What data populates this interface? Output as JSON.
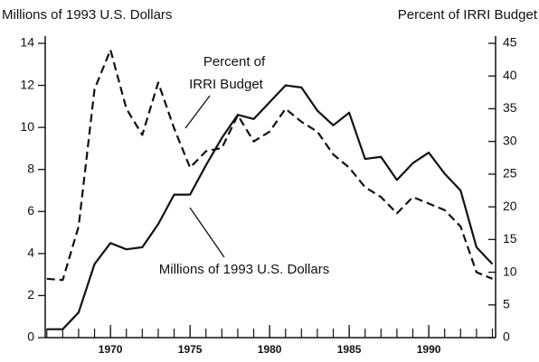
{
  "chart_data": {
    "type": "line",
    "y_label": "Millions of 1993 U.S. Dollars",
    "y2_label": "Percent of IRRI Budget",
    "annotations": [
      "Percent of",
      "IRRI Budget",
      "Millions of 1993 U.S. Dollars"
    ],
    "x": [
      1966,
      1967,
      1968,
      1969,
      1970,
      1971,
      1972,
      1973,
      1974,
      1975,
      1976,
      1977,
      1978,
      1979,
      1980,
      1981,
      1982,
      1983,
      1984,
      1985,
      1986,
      1987,
      1988,
      1989,
      1990,
      1991,
      1992,
      1993,
      1994
    ],
    "series": [
      {
        "name": "Millions of 1993 U.S. Dollars",
        "color": "#111111",
        "dash": false,
        "values": [
          0.4,
          0.4,
          1.2,
          3.5,
          4.5,
          4.2,
          4.3,
          5.4,
          6.8,
          6.8,
          8.2,
          9.5,
          10.6,
          10.4,
          11.2,
          12.0,
          11.9,
          10.8,
          10.1,
          10.7,
          8.5,
          8.6,
          7.5,
          8.3,
          8.8,
          7.8,
          7.0,
          4.3,
          3.5
        ]
      },
      {
        "name": "Percent of IRRI Budget",
        "color": "#111111",
        "dash": true,
        "axis": "y2",
        "values": [
          9,
          8.8,
          17,
          38,
          44,
          35,
          31,
          39,
          32,
          26,
          28.5,
          29,
          34,
          30,
          31.5,
          35,
          33,
          31.5,
          28,
          26,
          23,
          21.5,
          19,
          21.5,
          20.5,
          19.5,
          17,
          10,
          9
        ]
      }
    ],
    "xlim": [
      1965.9,
      1994.2
    ],
    "xticks": [
      1970,
      1975,
      1980,
      1985,
      1990
    ],
    "ylim": [
      0,
      14
    ],
    "yticks": [
      0,
      2,
      4,
      6,
      8,
      10,
      12,
      14
    ],
    "y2lim": [
      0,
      45
    ],
    "y2ticks": [
      0,
      5,
      10,
      15,
      20,
      25,
      30,
      35,
      40,
      45
    ]
  }
}
